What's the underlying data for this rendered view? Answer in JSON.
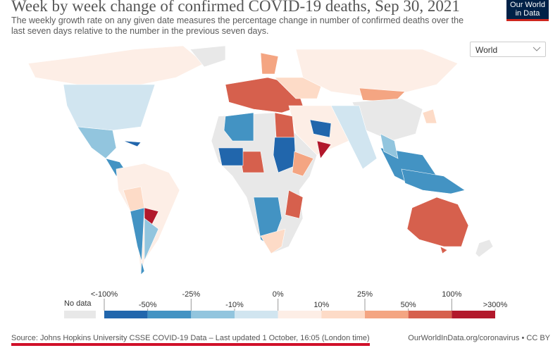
{
  "header": {
    "title": "Week by week change of confirmed COVID-19 deaths, Sep 30, 2021",
    "subtitle": "The weekly growth rate on any given date measures the percentage change in number of confirmed deaths over the last seven days relative to the number in the previous seven days.",
    "logo": "Our World in Data"
  },
  "controls": {
    "region": "World"
  },
  "legend": {
    "no_data": "No data",
    "labels": [
      "<-100%",
      "-50%",
      "-25%",
      "-10%",
      "0%",
      "10%",
      "25%",
      "50%",
      "100%",
      ">300%"
    ],
    "colors": [
      "#2166ac",
      "#4393c3",
      "#92c5de",
      "#d1e5f0",
      "#fdeee6",
      "#fddbc7",
      "#f4a582",
      "#d6604d",
      "#b2182b"
    ]
  },
  "footer": {
    "source": "Source: Johns Hopkins University CSSE COVID-19 Data – Last updated 1 October, 16:05 (London time)",
    "link": "OurWorldInData.org/coronavirus • CC BY"
  }
}
